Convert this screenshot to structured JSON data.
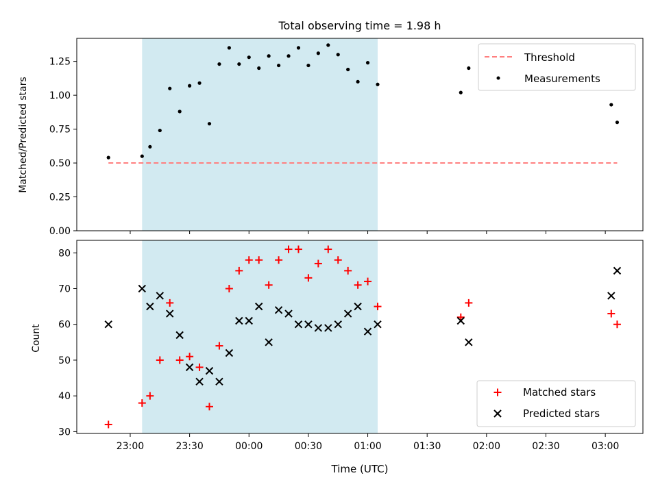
{
  "chart_data": [
    {
      "type": "scatter",
      "title": "Total observing time = 1.98 h",
      "xlabel": "",
      "ylabel": "Matched/Predicted stars",
      "ylim": [
        0,
        1.42
      ],
      "yticks": [
        0.0,
        0.25,
        0.5,
        0.75,
        1.0,
        1.25
      ],
      "ytick_labels": [
        "0.00",
        "0.25",
        "0.50",
        "0.75",
        "1.00",
        "1.25"
      ],
      "grid": false,
      "legend": "top-right",
      "shaded_span": {
        "start": "23:06",
        "end": "01:05",
        "color": "#add8e6"
      },
      "threshold": {
        "name": "Threshold",
        "value": 0.5,
        "x_start": "22:49",
        "x_end": "03:06",
        "color": "#ff7f7f",
        "style": "dashed"
      },
      "series": [
        {
          "name": "Measurements",
          "color": "#000000",
          "marker": "dot",
          "points": [
            {
              "x": "22:49",
              "y": 0.54
            },
            {
              "x": "23:06",
              "y": 0.55
            },
            {
              "x": "23:10",
              "y": 0.62
            },
            {
              "x": "23:15",
              "y": 0.74
            },
            {
              "x": "23:20",
              "y": 1.05
            },
            {
              "x": "23:25",
              "y": 0.88
            },
            {
              "x": "23:30",
              "y": 1.07
            },
            {
              "x": "23:35",
              "y": 1.09
            },
            {
              "x": "23:40",
              "y": 0.79
            },
            {
              "x": "23:45",
              "y": 1.23
            },
            {
              "x": "23:50",
              "y": 1.35
            },
            {
              "x": "23:55",
              "y": 1.23
            },
            {
              "x": "00:00",
              "y": 1.28
            },
            {
              "x": "00:05",
              "y": 1.2
            },
            {
              "x": "00:10",
              "y": 1.29
            },
            {
              "x": "00:15",
              "y": 1.22
            },
            {
              "x": "00:20",
              "y": 1.29
            },
            {
              "x": "00:25",
              "y": 1.35
            },
            {
              "x": "00:30",
              "y": 1.22
            },
            {
              "x": "00:35",
              "y": 1.31
            },
            {
              "x": "00:40",
              "y": 1.37
            },
            {
              "x": "00:45",
              "y": 1.3
            },
            {
              "x": "00:50",
              "y": 1.19
            },
            {
              "x": "00:55",
              "y": 1.1
            },
            {
              "x": "01:00",
              "y": 1.24
            },
            {
              "x": "01:05",
              "y": 1.08
            },
            {
              "x": "01:47",
              "y": 1.02
            },
            {
              "x": "01:51",
              "y": 1.2
            },
            {
              "x": "03:03",
              "y": 0.93
            },
            {
              "x": "03:06",
              "y": 0.8
            }
          ]
        }
      ]
    },
    {
      "type": "scatter",
      "title": "",
      "xlabel": "Time (UTC)",
      "ylabel": "Count",
      "ylim": [
        29.5,
        83.5
      ],
      "yticks": [
        30,
        40,
        50,
        60,
        70,
        80
      ],
      "ytick_labels": [
        "30",
        "40",
        "50",
        "60",
        "70",
        "80"
      ],
      "xticks": [
        "23:00",
        "23:30",
        "00:00",
        "00:30",
        "01:00",
        "01:30",
        "02:00",
        "02:30",
        "03:00"
      ],
      "xlim": [
        "22:33",
        "03:19"
      ],
      "grid": false,
      "legend": "bottom-right",
      "shaded_span": {
        "start": "23:06",
        "end": "01:05",
        "color": "#add8e6"
      },
      "series": [
        {
          "name": "Matched stars",
          "color": "#ff0000",
          "marker": "plus",
          "points": [
            {
              "x": "22:49",
              "y": 32
            },
            {
              "x": "23:06",
              "y": 38
            },
            {
              "x": "23:10",
              "y": 40
            },
            {
              "x": "23:15",
              "y": 50
            },
            {
              "x": "23:20",
              "y": 66
            },
            {
              "x": "23:25",
              "y": 50
            },
            {
              "x": "23:30",
              "y": 51
            },
            {
              "x": "23:35",
              "y": 48
            },
            {
              "x": "23:40",
              "y": 37
            },
            {
              "x": "23:45",
              "y": 54
            },
            {
              "x": "23:50",
              "y": 70
            },
            {
              "x": "23:55",
              "y": 75
            },
            {
              "x": "00:00",
              "y": 78
            },
            {
              "x": "00:05",
              "y": 78
            },
            {
              "x": "00:10",
              "y": 71
            },
            {
              "x": "00:15",
              "y": 78
            },
            {
              "x": "00:20",
              "y": 81
            },
            {
              "x": "00:25",
              "y": 81
            },
            {
              "x": "00:30",
              "y": 73
            },
            {
              "x": "00:35",
              "y": 77
            },
            {
              "x": "00:40",
              "y": 81
            },
            {
              "x": "00:45",
              "y": 78
            },
            {
              "x": "00:50",
              "y": 75
            },
            {
              "x": "00:55",
              "y": 71
            },
            {
              "x": "01:00",
              "y": 72
            },
            {
              "x": "01:05",
              "y": 65
            },
            {
              "x": "01:47",
              "y": 62
            },
            {
              "x": "01:51",
              "y": 66
            },
            {
              "x": "03:03",
              "y": 63
            },
            {
              "x": "03:06",
              "y": 60
            }
          ]
        },
        {
          "name": "Predicted stars",
          "color": "#000000",
          "marker": "x",
          "points": [
            {
              "x": "22:49",
              "y": 60
            },
            {
              "x": "23:06",
              "y": 70
            },
            {
              "x": "23:10",
              "y": 65
            },
            {
              "x": "23:15",
              "y": 68
            },
            {
              "x": "23:20",
              "y": 63
            },
            {
              "x": "23:25",
              "y": 57
            },
            {
              "x": "23:30",
              "y": 48
            },
            {
              "x": "23:35",
              "y": 44
            },
            {
              "x": "23:40",
              "y": 47
            },
            {
              "x": "23:45",
              "y": 44
            },
            {
              "x": "23:50",
              "y": 52
            },
            {
              "x": "23:55",
              "y": 61
            },
            {
              "x": "00:00",
              "y": 61
            },
            {
              "x": "00:05",
              "y": 65
            },
            {
              "x": "00:10",
              "y": 55
            },
            {
              "x": "00:15",
              "y": 64
            },
            {
              "x": "00:20",
              "y": 63
            },
            {
              "x": "00:25",
              "y": 60
            },
            {
              "x": "00:30",
              "y": 60
            },
            {
              "x": "00:35",
              "y": 59
            },
            {
              "x": "00:40",
              "y": 59
            },
            {
              "x": "00:45",
              "y": 60
            },
            {
              "x": "00:50",
              "y": 63
            },
            {
              "x": "00:55",
              "y": 65
            },
            {
              "x": "01:00",
              "y": 58
            },
            {
              "x": "01:05",
              "y": 60
            },
            {
              "x": "01:47",
              "y": 61
            },
            {
              "x": "01:51",
              "y": 55
            },
            {
              "x": "03:03",
              "y": 68
            },
            {
              "x": "03:06",
              "y": 75
            }
          ]
        }
      ]
    }
  ]
}
